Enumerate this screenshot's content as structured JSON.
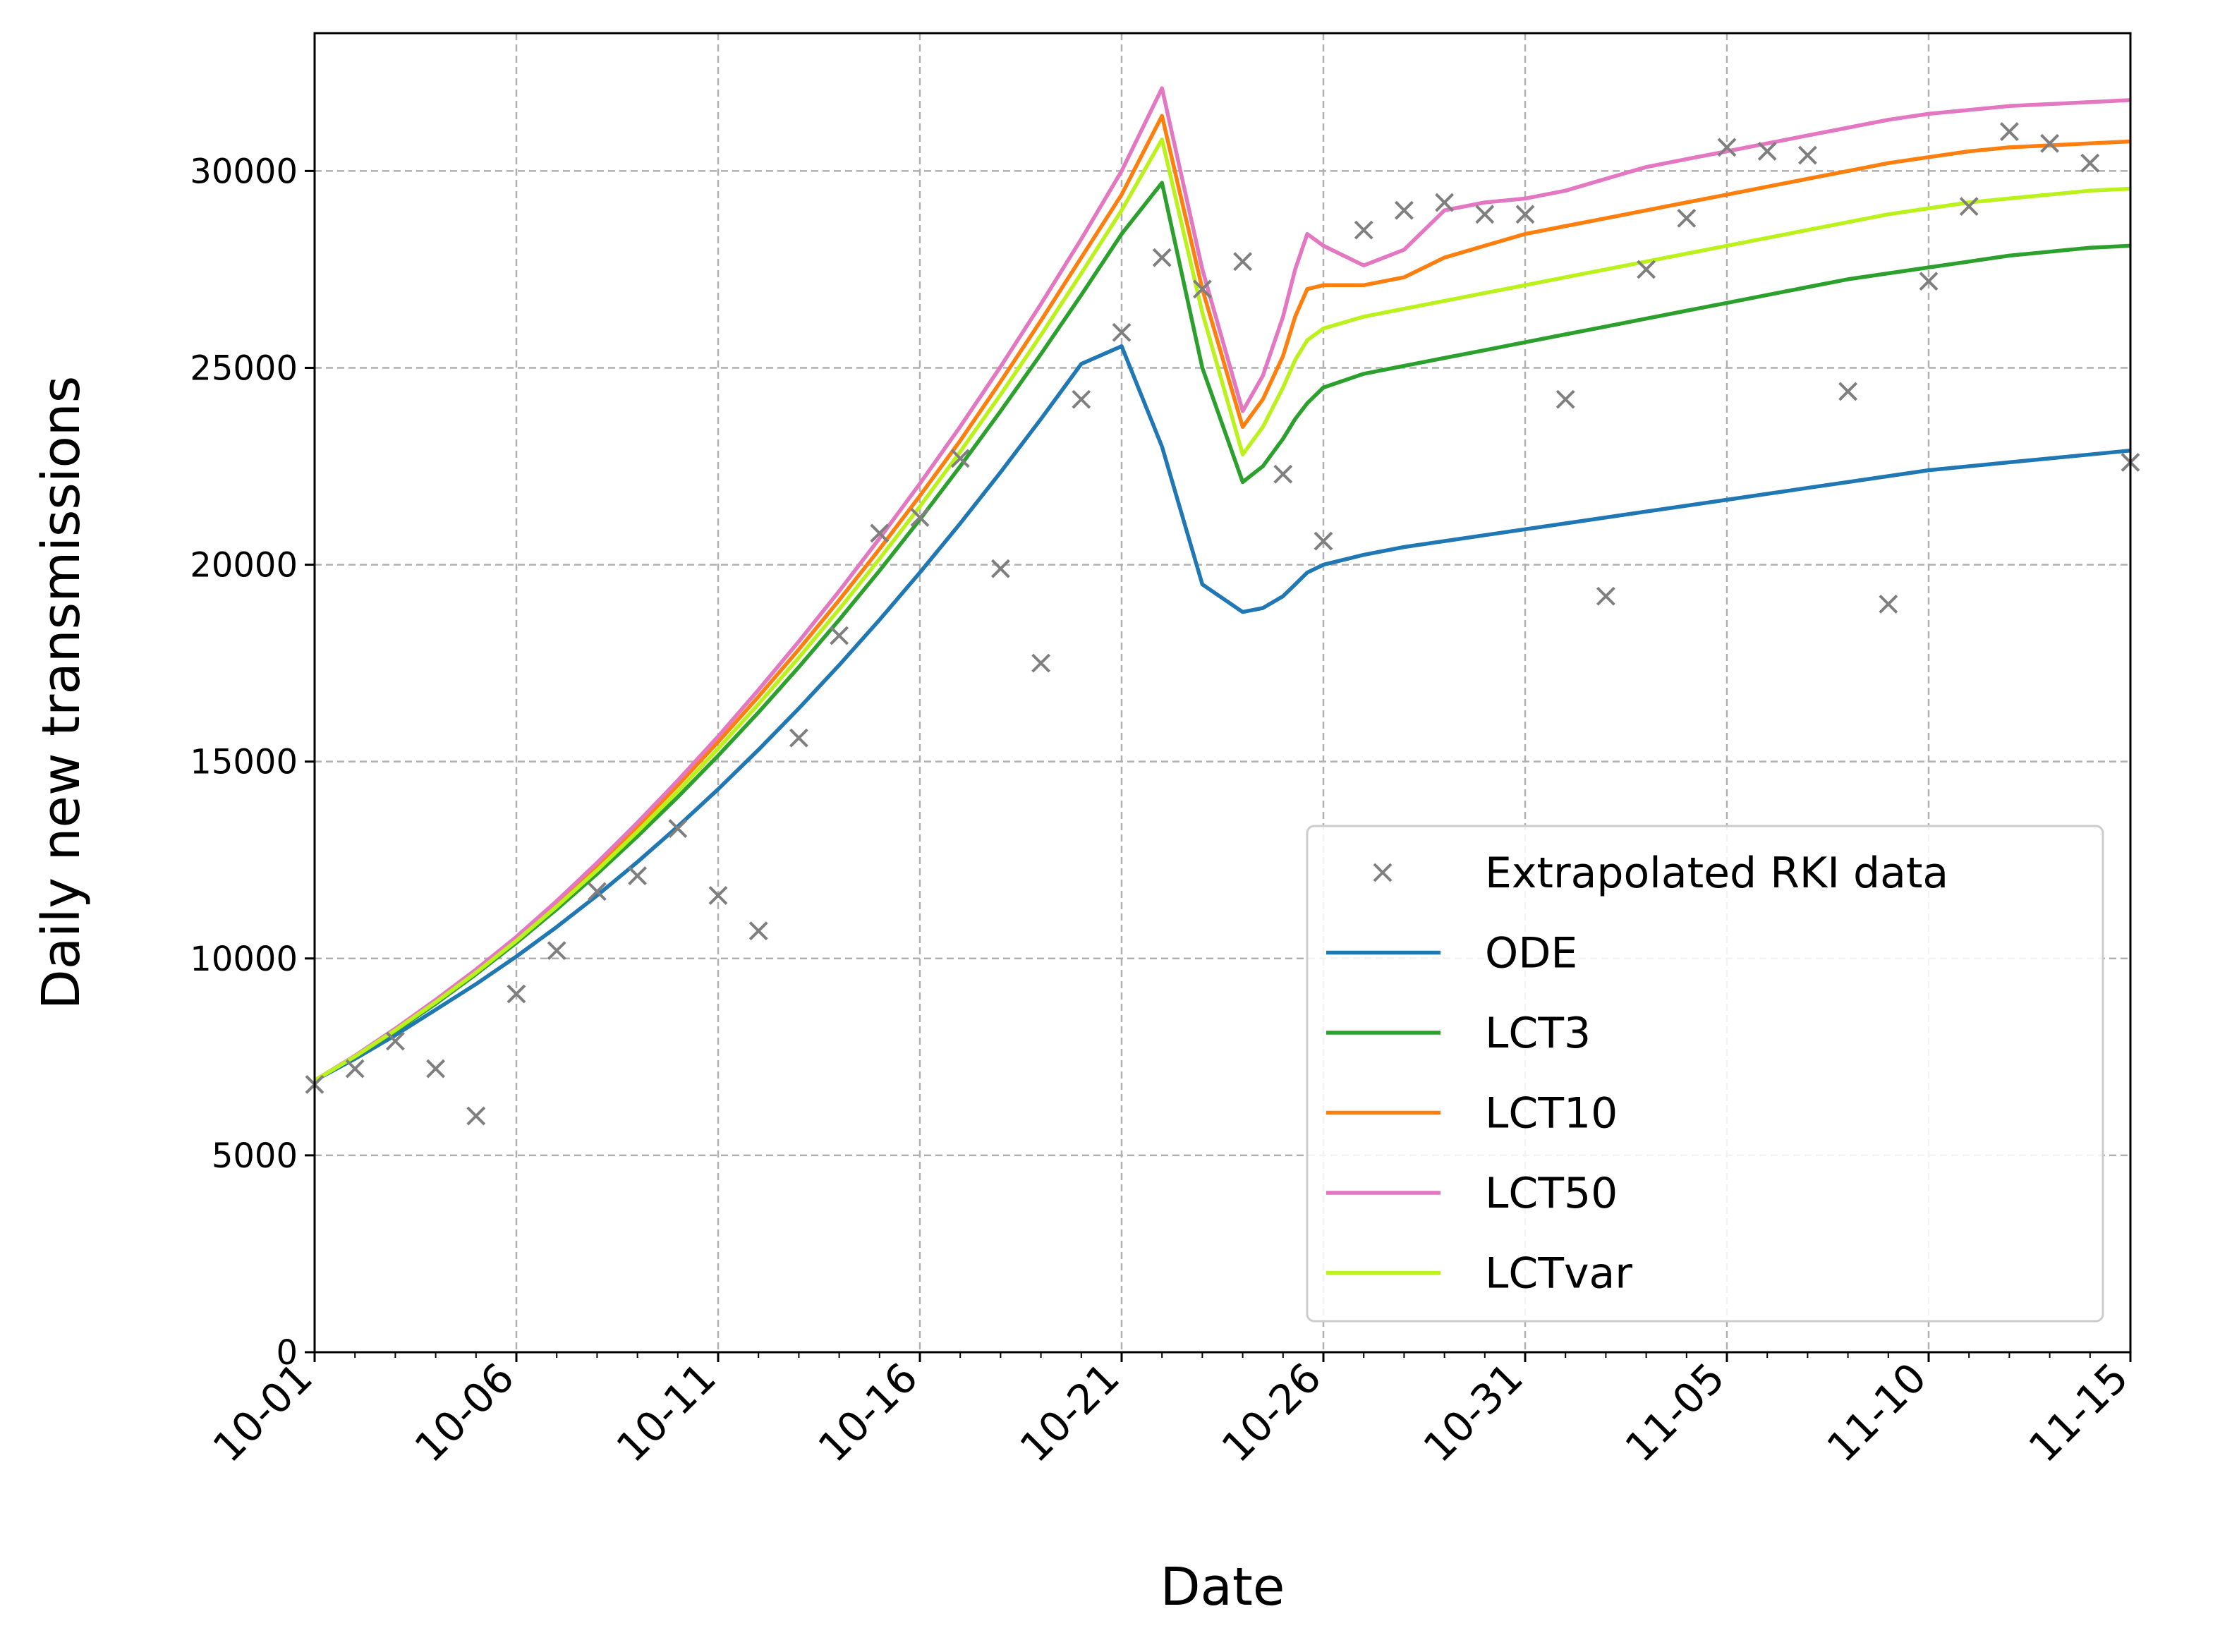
{
  "chart_data": {
    "type": "line",
    "title": "",
    "xlabel": "Date",
    "ylabel": "Daily new transmissions",
    "xlim": [
      0,
      45
    ],
    "ylim": [
      0,
      33500
    ],
    "grid": true,
    "legend_position": "bottom-right",
    "x_ticks": [
      {
        "day": 0,
        "label": "10-01"
      },
      {
        "day": 5,
        "label": "10-06"
      },
      {
        "day": 10,
        "label": "10-11"
      },
      {
        "day": 15,
        "label": "10-16"
      },
      {
        "day": 20,
        "label": "10-21"
      },
      {
        "day": 25,
        "label": "10-26"
      },
      {
        "day": 30,
        "label": "10-31"
      },
      {
        "day": 35,
        "label": "11-05"
      },
      {
        "day": 40,
        "label": "11-10"
      },
      {
        "day": 45,
        "label": "11-15"
      }
    ],
    "y_ticks": [
      0,
      5000,
      10000,
      15000,
      20000,
      25000,
      30000
    ],
    "scatter": {
      "name": "Extrapolated RKI data",
      "color": "#7f7f7f",
      "marker": "x",
      "x": [
        0,
        1,
        2,
        3,
        4,
        5,
        6,
        7,
        8,
        9,
        10,
        11,
        12,
        13,
        14,
        15,
        16,
        17,
        18,
        19,
        20,
        21,
        22,
        23,
        24,
        25,
        26,
        27,
        28,
        29,
        30,
        31,
        32,
        33,
        34,
        35,
        36,
        37,
        38,
        39,
        40,
        41,
        42,
        43,
        44,
        45
      ],
      "y": [
        6800,
        7200,
        7900,
        7200,
        6000,
        9100,
        10200,
        11700,
        12100,
        13300,
        11600,
        10700,
        15600,
        18200,
        20800,
        21200,
        22700,
        19900,
        17500,
        24200,
        25900,
        27800,
        27000,
        27700,
        22300,
        20600,
        28500,
        29000,
        29200,
        28900,
        28900,
        24200,
        19200,
        27500,
        28800,
        30600,
        30500,
        30400,
        24400,
        19000,
        27200,
        29100,
        31000,
        30700,
        30200,
        22600
      ]
    },
    "series": [
      {
        "name": "ODE",
        "color": "#1f77b4",
        "x": [
          0,
          1,
          2,
          3,
          4,
          5,
          6,
          7,
          8,
          9,
          10,
          11,
          12,
          13,
          14,
          15,
          16,
          17,
          18,
          19,
          20,
          21,
          22,
          23,
          23.5,
          24,
          24.3,
          24.6,
          25,
          26,
          27,
          28,
          29,
          30,
          31,
          32,
          33,
          34,
          35,
          36,
          37,
          38,
          39,
          40,
          41,
          42,
          43,
          44,
          45
        ],
        "y": [
          6900,
          7450,
          8050,
          8700,
          9350,
          10050,
          10800,
          11600,
          12450,
          13350,
          14300,
          15300,
          16350,
          17450,
          18600,
          19800,
          21050,
          22350,
          23700,
          25100,
          25550,
          23000,
          19500,
          18800,
          18900,
          19200,
          19500,
          19800,
          20000,
          20250,
          20450,
          20600,
          20750,
          20900,
          21050,
          21200,
          21350,
          21500,
          21650,
          21800,
          21950,
          22100,
          22250,
          22400,
          22500,
          22600,
          22700,
          22800,
          22900
        ]
      },
      {
        "name": "LCT3",
        "color": "#2ca02c",
        "x": [
          0,
          1,
          2,
          3,
          4,
          5,
          6,
          7,
          8,
          9,
          10,
          11,
          12,
          13,
          14,
          15,
          16,
          17,
          18,
          19,
          20,
          21,
          22,
          23,
          23.5,
          24,
          24.3,
          24.6,
          25,
          26,
          27,
          28,
          29,
          30,
          31,
          32,
          33,
          34,
          35,
          36,
          37,
          38,
          39,
          40,
          41,
          42,
          43,
          44,
          45
        ],
        "y": [
          6900,
          7500,
          8150,
          8850,
          9600,
          10400,
          11250,
          12150,
          13100,
          14100,
          15150,
          16250,
          17400,
          18600,
          19850,
          21150,
          22500,
          23900,
          25350,
          26850,
          28400,
          29700,
          25000,
          22100,
          22500,
          23200,
          23700,
          24100,
          24500,
          24850,
          25050,
          25250,
          25450,
          25650,
          25850,
          26050,
          26250,
          26450,
          26650,
          26850,
          27050,
          27250,
          27400,
          27550,
          27700,
          27850,
          27950,
          28050,
          28100
        ]
      },
      {
        "name": "LCT10",
        "color": "#ff7f0e",
        "x": [
          0,
          1,
          2,
          3,
          4,
          5,
          6,
          7,
          8,
          9,
          10,
          11,
          12,
          13,
          14,
          15,
          16,
          17,
          18,
          19,
          20,
          21,
          22,
          23,
          23.5,
          24,
          24.3,
          24.6,
          25,
          26,
          27,
          28,
          29,
          30,
          31,
          32,
          33,
          34,
          35,
          36,
          37,
          38,
          39,
          40,
          41,
          42,
          43,
          44,
          45
        ],
        "y": [
          6900,
          7520,
          8200,
          8920,
          9680,
          10500,
          11400,
          12350,
          13350,
          14400,
          15500,
          16650,
          17850,
          19100,
          20400,
          21750,
          23150,
          24650,
          26200,
          27800,
          29400,
          31400,
          27000,
          23500,
          24200,
          25300,
          26300,
          27000,
          27100,
          27100,
          27300,
          27800,
          28100,
          28400,
          28600,
          28800,
          29000,
          29200,
          29400,
          29600,
          29800,
          30000,
          30200,
          30350,
          30500,
          30600,
          30650,
          30700,
          30750
        ]
      },
      {
        "name": "LCT50",
        "color": "#e377c2",
        "x": [
          0,
          1,
          2,
          3,
          4,
          5,
          6,
          7,
          8,
          9,
          10,
          11,
          12,
          13,
          14,
          15,
          16,
          17,
          18,
          19,
          20,
          21,
          22,
          23,
          23.5,
          24,
          24.3,
          24.6,
          25,
          26,
          27,
          28,
          29,
          30,
          31,
          32,
          33,
          34,
          35,
          36,
          37,
          38,
          39,
          40,
          41,
          42,
          43,
          44,
          45
        ],
        "y": [
          6900,
          7530,
          8220,
          8950,
          9720,
          10550,
          11460,
          12430,
          13450,
          14520,
          15640,
          16820,
          18050,
          19330,
          20670,
          22060,
          23510,
          25030,
          26620,
          28270,
          30000,
          32100,
          27500,
          23900,
          24800,
          26300,
          27500,
          28400,
          28100,
          27600,
          28000,
          29000,
          29200,
          29300,
          29500,
          29800,
          30100,
          30300,
          30500,
          30700,
          30900,
          31100,
          31300,
          31450,
          31550,
          31650,
          31700,
          31750,
          31800
        ]
      },
      {
        "name": "LCTvar",
        "color": "#bcf21b",
        "x": [
          0,
          1,
          2,
          3,
          4,
          5,
          6,
          7,
          8,
          9,
          10,
          11,
          12,
          13,
          14,
          15,
          16,
          17,
          18,
          19,
          20,
          21,
          22,
          23,
          23.5,
          24,
          24.3,
          24.6,
          25,
          26,
          27,
          28,
          29,
          30,
          31,
          32,
          33,
          34,
          35,
          36,
          37,
          38,
          39,
          40,
          41,
          42,
          43,
          44,
          45
        ],
        "y": [
          6900,
          7510,
          8180,
          8890,
          9640,
          10450,
          11320,
          12240,
          13220,
          14250,
          15330,
          16460,
          17640,
          18870,
          20150,
          21480,
          22870,
          24320,
          25830,
          27400,
          29000,
          30800,
          26400,
          22800,
          23500,
          24500,
          25200,
          25700,
          26000,
          26300,
          26500,
          26700,
          26900,
          27100,
          27300,
          27500,
          27700,
          27900,
          28100,
          28300,
          28500,
          28700,
          28900,
          29050,
          29200,
          29300,
          29400,
          29500,
          29550
        ]
      }
    ]
  }
}
